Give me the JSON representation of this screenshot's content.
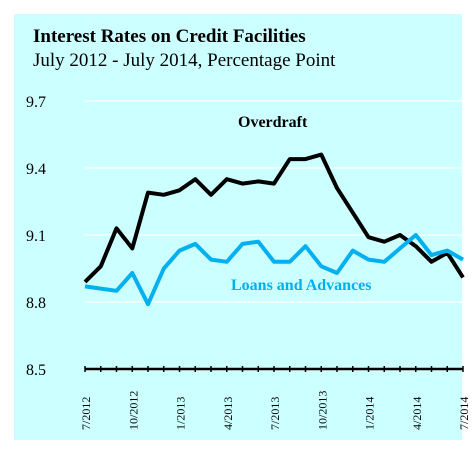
{
  "chart_data": {
    "type": "line",
    "title": "Interest Rates on Credit Facilities",
    "subtitle": "July 2012 - July 2014, Percentage Point",
    "xlabel": "",
    "ylabel": "",
    "ylim": [
      8.5,
      9.7
    ],
    "yticks": [
      "8.5",
      "8.8",
      "9.1",
      "9.4",
      "9.7"
    ],
    "x_tick_labels": [
      "7/2012",
      "10/2012",
      "1/2013",
      "4/2013",
      "7/2013",
      "10/2013",
      "1/2014",
      "4/2014",
      "7/2014"
    ],
    "grid": "horizontal",
    "legend": "inline",
    "background_color": "#ccffff",
    "x": [
      "2012-07",
      "2012-08",
      "2012-09",
      "2012-10",
      "2012-11",
      "2012-12",
      "2013-01",
      "2013-02",
      "2013-03",
      "2013-04",
      "2013-05",
      "2013-06",
      "2013-07",
      "2013-08",
      "2013-09",
      "2013-10",
      "2013-11",
      "2013-12",
      "2014-01",
      "2014-02",
      "2014-03",
      "2014-04",
      "2014-05",
      "2014-06",
      "2014-07"
    ],
    "series": [
      {
        "name": "Overdraft",
        "color": "#000000",
        "values": [
          8.89,
          8.96,
          9.13,
          9.04,
          9.29,
          9.28,
          9.3,
          9.35,
          9.28,
          9.35,
          9.33,
          9.34,
          9.33,
          9.44,
          9.44,
          9.46,
          9.31,
          9.2,
          9.09,
          9.07,
          9.1,
          9.05,
          8.98,
          9.02,
          8.91
        ]
      },
      {
        "name": "Loans and Advances",
        "color": "#00b0f0",
        "values": [
          8.87,
          8.86,
          8.85,
          8.93,
          8.79,
          8.95,
          9.03,
          9.06,
          8.99,
          8.98,
          9.06,
          9.07,
          8.98,
          8.98,
          9.05,
          8.96,
          8.93,
          9.03,
          8.99,
          8.98,
          9.04,
          9.1,
          9.01,
          9.03,
          8.99
        ]
      }
    ]
  }
}
